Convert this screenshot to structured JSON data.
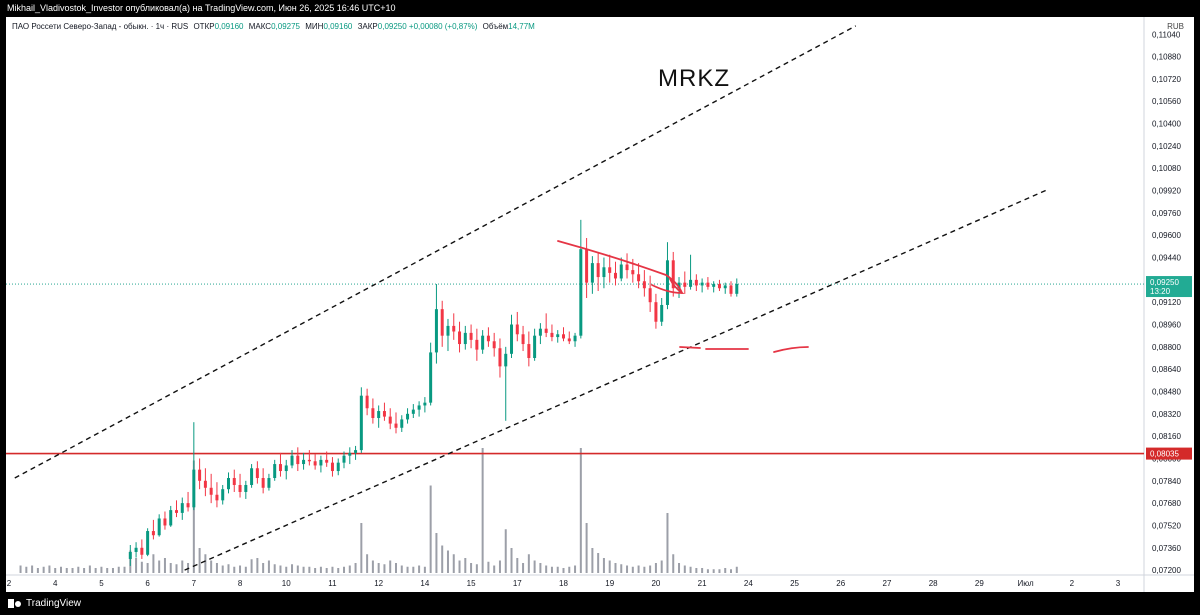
{
  "publication": {
    "caption": "Mikhail_Vladivostok_Investor опубликовал(а) на TradingView.com, Июн 26, 2025 16:46 UTC+10"
  },
  "legend": {
    "symbol": "ПАО Россети Северо-Запад - обыкн. · 1ч · RUS",
    "open_label": "ОТКР",
    "open_value": "0,09160",
    "high_label": "МАКС",
    "high_value": "0,09275",
    "low_label": "МИН",
    "low_value": "0,09160",
    "close_label": "ЗАКР",
    "close_value": "0,09250",
    "change_value": "+0,00080 (+0,87%)",
    "volume_label": "Объём",
    "volume_value": "14,77M"
  },
  "currency": "RUB",
  "ticker_annotation": "MRKZ",
  "footer": {
    "brand": "TradingView"
  },
  "colors": {
    "up": "#089981",
    "down": "#f23645",
    "support_line": "#d42a2a",
    "annotation": "#e53545",
    "volume": "#9c9fa8"
  },
  "chart_data": {
    "type": "candlestick",
    "interval": "1h",
    "y_axis_side": "right",
    "y_ticks": [
      "0,11040",
      "0,10880",
      "0,10720",
      "0,10560",
      "0,10400",
      "0,10240",
      "0,10080",
      "0,09920",
      "0,09760",
      "0,09600",
      "0,09440",
      "0,09280",
      "0,09120",
      "0,08960",
      "0,08800",
      "0,08640",
      "0,08480",
      "0,08320",
      "0,08160",
      "0,08000",
      "0,07840",
      "0,07680",
      "0,07520",
      "0,07360",
      "0,07200"
    ],
    "y_tick_values": [
      0.1104,
      0.1088,
      0.1072,
      0.1056,
      0.104,
      0.1024,
      0.1008,
      0.0992,
      0.0976,
      0.096,
      0.0944,
      0.0928,
      0.0912,
      0.0896,
      0.088,
      0.0864,
      0.0848,
      0.0832,
      0.0816,
      0.08,
      0.0784,
      0.0768,
      0.0752,
      0.0736,
      0.072
    ],
    "x_ticks": [
      "2",
      "4",
      "5",
      "6",
      "7",
      "8",
      "10",
      "11",
      "12",
      "14",
      "15",
      "17",
      "18",
      "19",
      "20",
      "21",
      "24",
      "25",
      "26",
      "27",
      "28",
      "29",
      "Июл",
      "2",
      "3"
    ],
    "ylim": [
      0.07165,
      0.11135
    ],
    "last_price": 0.0925,
    "last_price_label": "0,09250",
    "countdown_label": "13:20",
    "horizontal_level": 0.08035,
    "horizontal_level_label": "0,08035",
    "channel_upper": [
      [
        0.5,
        0.0786
      ],
      [
        73.3,
        0.111
      ]
    ],
    "channel_lower": [
      [
        15.2,
        0.072
      ],
      [
        90.0,
        0.0993
      ]
    ],
    "candles": [
      [
        10.5,
        0.0728,
        0.0738,
        0.0723,
        0.0733
      ],
      [
        11.0,
        0.0733,
        0.074,
        0.0729,
        0.0736
      ],
      [
        11.5,
        0.0736,
        0.0742,
        0.0728,
        0.0731
      ],
      [
        12.0,
        0.0731,
        0.075,
        0.073,
        0.0748
      ],
      [
        12.5,
        0.0748,
        0.0756,
        0.0742,
        0.0745
      ],
      [
        13.0,
        0.0745,
        0.076,
        0.0744,
        0.0757
      ],
      [
        13.5,
        0.0757,
        0.0762,
        0.0749,
        0.0752
      ],
      [
        14.0,
        0.0752,
        0.0766,
        0.0751,
        0.0763
      ],
      [
        14.5,
        0.0763,
        0.077,
        0.0758,
        0.0761
      ],
      [
        15.0,
        0.0761,
        0.0772,
        0.0756,
        0.0768
      ],
      [
        15.5,
        0.0768,
        0.0776,
        0.0762,
        0.0765
      ],
      [
        16.0,
        0.0765,
        0.0826,
        0.0763,
        0.0792
      ],
      [
        16.5,
        0.0792,
        0.08,
        0.0778,
        0.0784
      ],
      [
        17.0,
        0.0784,
        0.0793,
        0.0773,
        0.0779
      ],
      [
        17.5,
        0.0779,
        0.0789,
        0.0768,
        0.0774
      ],
      [
        18.0,
        0.0774,
        0.0783,
        0.0765,
        0.077
      ],
      [
        18.5,
        0.077,
        0.0781,
        0.0767,
        0.0778
      ],
      [
        19.0,
        0.0778,
        0.079,
        0.0775,
        0.0786
      ],
      [
        19.5,
        0.0786,
        0.0792,
        0.0776,
        0.0781
      ],
      [
        20.0,
        0.0781,
        0.0789,
        0.0772,
        0.0776
      ],
      [
        20.5,
        0.0776,
        0.0784,
        0.0771,
        0.0781
      ],
      [
        21.0,
        0.0781,
        0.0796,
        0.0779,
        0.0793
      ],
      [
        21.5,
        0.0793,
        0.0798,
        0.0782,
        0.0786
      ],
      [
        22.0,
        0.0786,
        0.0793,
        0.0775,
        0.0779
      ],
      [
        22.5,
        0.0779,
        0.0789,
        0.0777,
        0.0786
      ],
      [
        23.0,
        0.0786,
        0.0799,
        0.0784,
        0.0796
      ],
      [
        23.5,
        0.0796,
        0.0804,
        0.0787,
        0.0791
      ],
      [
        24.0,
        0.0791,
        0.0799,
        0.0785,
        0.0795
      ],
      [
        24.5,
        0.0795,
        0.0806,
        0.0793,
        0.0802
      ],
      [
        25.0,
        0.0802,
        0.0808,
        0.0791,
        0.0796
      ],
      [
        25.5,
        0.0796,
        0.0804,
        0.0792,
        0.0799
      ],
      [
        26.0,
        0.0799,
        0.0806,
        0.0795,
        0.0798
      ],
      [
        26.5,
        0.0798,
        0.0803,
        0.0792,
        0.0795
      ],
      [
        27.0,
        0.0795,
        0.0802,
        0.079,
        0.0799
      ],
      [
        27.5,
        0.0799,
        0.0805,
        0.0794,
        0.0797
      ],
      [
        28.0,
        0.0797,
        0.0801,
        0.0787,
        0.0791
      ],
      [
        28.5,
        0.0791,
        0.08,
        0.0788,
        0.0797
      ],
      [
        29.0,
        0.0797,
        0.0805,
        0.0793,
        0.0802
      ],
      [
        29.5,
        0.0802,
        0.0808,
        0.0796,
        0.0804
      ],
      [
        30.0,
        0.0804,
        0.0809,
        0.0799,
        0.0806
      ],
      [
        30.5,
        0.0806,
        0.0851,
        0.0804,
        0.0845
      ],
      [
        31.0,
        0.0845,
        0.085,
        0.0831,
        0.0836
      ],
      [
        31.5,
        0.0836,
        0.0843,
        0.0825,
        0.0829
      ],
      [
        32.0,
        0.0829,
        0.0838,
        0.0822,
        0.0834
      ],
      [
        32.5,
        0.0834,
        0.084,
        0.0827,
        0.083
      ],
      [
        33.0,
        0.083,
        0.0836,
        0.0821,
        0.0825
      ],
      [
        33.5,
        0.0825,
        0.0833,
        0.0818,
        0.0822
      ],
      [
        34.0,
        0.0822,
        0.0831,
        0.0819,
        0.0828
      ],
      [
        34.5,
        0.0828,
        0.0836,
        0.0825,
        0.0832
      ],
      [
        35.0,
        0.0832,
        0.0839,
        0.0829,
        0.0835
      ],
      [
        35.5,
        0.0835,
        0.0841,
        0.083,
        0.0838
      ],
      [
        36.0,
        0.0838,
        0.0844,
        0.0833,
        0.084
      ],
      [
        36.5,
        0.084,
        0.0883,
        0.0838,
        0.0876
      ],
      [
        37.0,
        0.0876,
        0.0925,
        0.0868,
        0.0907
      ],
      [
        37.5,
        0.0907,
        0.0913,
        0.088,
        0.0888
      ],
      [
        38.0,
        0.0888,
        0.09,
        0.0877,
        0.0895
      ],
      [
        38.5,
        0.0895,
        0.0904,
        0.0885,
        0.0891
      ],
      [
        39.0,
        0.0891,
        0.0898,
        0.0876,
        0.0882
      ],
      [
        39.5,
        0.0882,
        0.0895,
        0.0878,
        0.089
      ],
      [
        40.0,
        0.089,
        0.0896,
        0.0879,
        0.0885
      ],
      [
        40.5,
        0.0885,
        0.0893,
        0.087,
        0.0878
      ],
      [
        41.0,
        0.0878,
        0.0892,
        0.0875,
        0.0888
      ],
      [
        41.5,
        0.0888,
        0.0894,
        0.088,
        0.0884
      ],
      [
        42.0,
        0.0884,
        0.089,
        0.0873,
        0.0879
      ],
      [
        42.5,
        0.0879,
        0.0886,
        0.0858,
        0.0866
      ],
      [
        43.0,
        0.0866,
        0.088,
        0.0827,
        0.0875
      ],
      [
        43.5,
        0.0875,
        0.0903,
        0.0872,
        0.0896
      ],
      [
        44.0,
        0.0896,
        0.0905,
        0.0884,
        0.0889
      ],
      [
        44.5,
        0.0889,
        0.0895,
        0.0877,
        0.0882
      ],
      [
        45.0,
        0.0882,
        0.0891,
        0.0866,
        0.0872
      ],
      [
        45.5,
        0.0872,
        0.0893,
        0.087,
        0.0888
      ],
      [
        46.0,
        0.0888,
        0.0897,
        0.0882,
        0.0893
      ],
      [
        46.5,
        0.0893,
        0.0904,
        0.0887,
        0.089
      ],
      [
        47.0,
        0.089,
        0.0896,
        0.0884,
        0.0887
      ],
      [
        47.5,
        0.0887,
        0.0892,
        0.0883,
        0.0889
      ],
      [
        48.0,
        0.0889,
        0.0894,
        0.0884,
        0.0886
      ],
      [
        48.5,
        0.0886,
        0.0891,
        0.0882,
        0.0884
      ],
      [
        49.0,
        0.0884,
        0.089,
        0.088,
        0.0888
      ],
      [
        49.5,
        0.0888,
        0.0971,
        0.0886,
        0.095
      ],
      [
        50.0,
        0.095,
        0.0958,
        0.0915,
        0.0926
      ],
      [
        50.5,
        0.0926,
        0.0945,
        0.0918,
        0.094
      ],
      [
        51.0,
        0.094,
        0.0948,
        0.092,
        0.093
      ],
      [
        51.5,
        0.093,
        0.0944,
        0.0922,
        0.0937
      ],
      [
        52.0,
        0.0937,
        0.0946,
        0.0926,
        0.0933
      ],
      [
        52.5,
        0.0933,
        0.0941,
        0.0924,
        0.0929
      ],
      [
        53.0,
        0.0929,
        0.0944,
        0.0927,
        0.0939
      ],
      [
        53.5,
        0.0939,
        0.0947,
        0.0929,
        0.0935
      ],
      [
        54.0,
        0.0935,
        0.0943,
        0.0926,
        0.0932
      ],
      [
        54.5,
        0.0932,
        0.094,
        0.0922,
        0.0927
      ],
      [
        55.0,
        0.0927,
        0.0935,
        0.0916,
        0.0922
      ],
      [
        55.5,
        0.0922,
        0.0931,
        0.0905,
        0.0912
      ],
      [
        56.0,
        0.0912,
        0.0918,
        0.0893,
        0.0898
      ],
      [
        56.5,
        0.0898,
        0.0915,
        0.0895,
        0.091
      ],
      [
        57.0,
        0.091,
        0.0955,
        0.0907,
        0.0942
      ],
      [
        57.5,
        0.0942,
        0.0948,
        0.0916,
        0.0922
      ],
      [
        58.0,
        0.0922,
        0.093,
        0.0915,
        0.0926
      ],
      [
        58.5,
        0.0926,
        0.0934,
        0.0918,
        0.0923
      ],
      [
        59.0,
        0.0923,
        0.0946,
        0.0921,
        0.0928
      ],
      [
        59.5,
        0.0928,
        0.0932,
        0.092,
        0.0924
      ],
      [
        60.0,
        0.0924,
        0.0929,
        0.0919,
        0.0926
      ],
      [
        60.5,
        0.0926,
        0.093,
        0.0921,
        0.0923
      ],
      [
        61.0,
        0.0923,
        0.0927,
        0.0919,
        0.0925
      ],
      [
        61.5,
        0.0925,
        0.0928,
        0.092,
        0.0922
      ],
      [
        62.0,
        0.0922,
        0.0926,
        0.0918,
        0.0924
      ],
      [
        62.5,
        0.0924,
        0.0927,
        0.0916,
        0.0918
      ],
      [
        63.0,
        0.0918,
        0.0929,
        0.0916,
        0.0925
      ]
    ],
    "volumes": [
      [
        1.0,
        0.06
      ],
      [
        1.5,
        0.05
      ],
      [
        2.0,
        0.06
      ],
      [
        2.5,
        0.04
      ],
      [
        3.0,
        0.05
      ],
      [
        3.5,
        0.06
      ],
      [
        4.0,
        0.04
      ],
      [
        4.5,
        0.05
      ],
      [
        5.0,
        0.04
      ],
      [
        5.5,
        0.04
      ],
      [
        6.0,
        0.05
      ],
      [
        6.5,
        0.04
      ],
      [
        7.0,
        0.06
      ],
      [
        7.5,
        0.04
      ],
      [
        8.0,
        0.05
      ],
      [
        8.5,
        0.04
      ],
      [
        9.0,
        0.04
      ],
      [
        9.5,
        0.05
      ],
      [
        10.0,
        0.05
      ],
      [
        10.5,
        0.18
      ],
      [
        11.0,
        0.12
      ],
      [
        11.5,
        0.09
      ],
      [
        12.0,
        0.08
      ],
      [
        12.5,
        0.15
      ],
      [
        13.0,
        0.1
      ],
      [
        13.5,
        0.12
      ],
      [
        14.0,
        0.08
      ],
      [
        14.5,
        0.07
      ],
      [
        15.0,
        0.1
      ],
      [
        15.5,
        0.08
      ],
      [
        16.0,
        0.9
      ],
      [
        16.5,
        0.2
      ],
      [
        17.0,
        0.15
      ],
      [
        17.5,
        0.1
      ],
      [
        18.0,
        0.08
      ],
      [
        18.5,
        0.06
      ],
      [
        19.0,
        0.07
      ],
      [
        19.5,
        0.05
      ],
      [
        20.0,
        0.06
      ],
      [
        20.5,
        0.05
      ],
      [
        21.0,
        0.11
      ],
      [
        21.5,
        0.12
      ],
      [
        22.0,
        0.08
      ],
      [
        22.5,
        0.1
      ],
      [
        23.0,
        0.07
      ],
      [
        23.5,
        0.06
      ],
      [
        24.0,
        0.05
      ],
      [
        24.5,
        0.07
      ],
      [
        25.0,
        0.06
      ],
      [
        25.5,
        0.05
      ],
      [
        26.0,
        0.05
      ],
      [
        26.5,
        0.04
      ],
      [
        27.0,
        0.05
      ],
      [
        27.5,
        0.04
      ],
      [
        28.0,
        0.05
      ],
      [
        28.5,
        0.04
      ],
      [
        29.0,
        0.05
      ],
      [
        29.5,
        0.06
      ],
      [
        30.0,
        0.08
      ],
      [
        30.5,
        0.4
      ],
      [
        31.0,
        0.15
      ],
      [
        31.5,
        0.1
      ],
      [
        32.0,
        0.08
      ],
      [
        32.5,
        0.07
      ],
      [
        33.0,
        0.1
      ],
      [
        33.5,
        0.08
      ],
      [
        34.0,
        0.06
      ],
      [
        34.5,
        0.05
      ],
      [
        35.0,
        0.05
      ],
      [
        35.5,
        0.06
      ],
      [
        36.0,
        0.05
      ],
      [
        36.5,
        0.7
      ],
      [
        37.0,
        0.32
      ],
      [
        37.5,
        0.22
      ],
      [
        38.0,
        0.18
      ],
      [
        38.5,
        0.15
      ],
      [
        39.0,
        0.1
      ],
      [
        39.5,
        0.12
      ],
      [
        40.0,
        0.08
      ],
      [
        40.5,
        0.07
      ],
      [
        41.0,
        1.0
      ],
      [
        41.5,
        0.09
      ],
      [
        42.0,
        0.06
      ],
      [
        42.5,
        0.1
      ],
      [
        43.0,
        0.35
      ],
      [
        43.5,
        0.2
      ],
      [
        44.0,
        0.12
      ],
      [
        44.5,
        0.08
      ],
      [
        45.0,
        0.15
      ],
      [
        45.5,
        0.1
      ],
      [
        46.0,
        0.08
      ],
      [
        46.5,
        0.06
      ],
      [
        47.0,
        0.05
      ],
      [
        47.5,
        0.05
      ],
      [
        48.0,
        0.04
      ],
      [
        48.5,
        0.05
      ],
      [
        49.0,
        0.06
      ],
      [
        49.5,
        1.0
      ],
      [
        50.0,
        0.4
      ],
      [
        50.5,
        0.2
      ],
      [
        51.0,
        0.16
      ],
      [
        51.5,
        0.12
      ],
      [
        52.0,
        0.1
      ],
      [
        52.5,
        0.08
      ],
      [
        53.0,
        0.07
      ],
      [
        53.5,
        0.06
      ],
      [
        54.0,
        0.05
      ],
      [
        54.5,
        0.06
      ],
      [
        55.0,
        0.05
      ],
      [
        55.5,
        0.06
      ],
      [
        56.0,
        0.08
      ],
      [
        56.5,
        0.1
      ],
      [
        57.0,
        0.48
      ],
      [
        57.5,
        0.15
      ],
      [
        58.0,
        0.08
      ],
      [
        58.5,
        0.06
      ],
      [
        59.0,
        0.05
      ],
      [
        59.5,
        0.04
      ],
      [
        60.0,
        0.04
      ],
      [
        60.5,
        0.03
      ],
      [
        61.0,
        0.03
      ],
      [
        61.5,
        0.03
      ],
      [
        62.0,
        0.04
      ],
      [
        62.5,
        0.03
      ],
      [
        63.0,
        0.05
      ]
    ]
  }
}
